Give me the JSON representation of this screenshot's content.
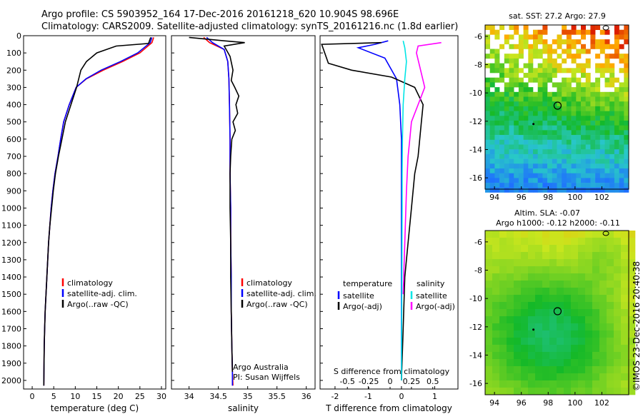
{
  "title_line1": "Argo profile: CS 5903952_164 17-Dec-2016 20161218_620 10.904S 98.696E",
  "title_line2": "Climatology: CARS2009. Satellite-adjusted climatology: synTS_20161216.nc (1.8d earlier)",
  "stamp": "©IMOS 23-Dec-2016 20:40:38",
  "colors": {
    "clim": "#ff0000",
    "sat": "#0000ff",
    "argo": "#000000",
    "cyan": "#00e5e5",
    "magenta": "#ff00ff"
  },
  "chart_data": [
    {
      "type": "line",
      "xlabel": "temperature (deg C)",
      "ylabel": "",
      "xlim": [
        -2,
        31
      ],
      "ylim": [
        2050,
        0
      ],
      "xticks": [
        0,
        5,
        10,
        15,
        20,
        25,
        30
      ],
      "yticks": [
        0,
        100,
        200,
        300,
        400,
        500,
        600,
        700,
        800,
        900,
        1000,
        1100,
        1200,
        1300,
        1400,
        1500,
        1600,
        1700,
        1800,
        1900,
        2000
      ],
      "legend": [
        "climatology",
        "satellite-adj. clim.",
        "Argo(..raw -QC)"
      ],
      "series": [
        {
          "name": "climatology",
          "color": "#ff0000",
          "x": [
            28.2,
            27.8,
            25,
            21,
            16.5,
            12.6,
            10.2,
            8.6,
            7.3,
            6.6,
            6.0,
            5.3,
            4.8,
            4.4,
            4.1,
            3.8,
            3.6,
            3.4,
            3.2,
            3.0,
            2.9,
            2.8,
            2.7
          ],
          "y": [
            10,
            40,
            100,
            150,
            200,
            250,
            300,
            400,
            500,
            600,
            700,
            800,
            900,
            1000,
            1100,
            1200,
            1300,
            1400,
            1500,
            1600,
            1700,
            1800,
            2030
          ]
        },
        {
          "name": "satellite-adj. clim.",
          "color": "#0000ff",
          "x": [
            27.8,
            27.4,
            24.5,
            20.5,
            16,
            12.5,
            10.2,
            8.6,
            7.3,
            6.6,
            6.0,
            5.3,
            4.8,
            4.4,
            4.1,
            3.8,
            3.6,
            3.4,
            3.2,
            3.0,
            2.9,
            2.8,
            2.7
          ],
          "y": [
            10,
            40,
            100,
            150,
            200,
            250,
            300,
            400,
            500,
            600,
            700,
            800,
            900,
            1000,
            1100,
            1200,
            1300,
            1400,
            1500,
            1600,
            1700,
            1800,
            2030
          ]
        },
        {
          "name": "Argo(..raw -QC)",
          "color": "#000000",
          "x": [
            27.5,
            27.0,
            19.5,
            15,
            12.6,
            11.3,
            10.3,
            9.0,
            7.7,
            6.9,
            6.1,
            5.4,
            4.9,
            4.5,
            4.1,
            3.8,
            3.6,
            3.4,
            3.2,
            3.0,
            2.9,
            2.8,
            2.7
          ],
          "y": [
            10,
            45,
            60,
            100,
            150,
            200,
            300,
            400,
            500,
            600,
            700,
            800,
            900,
            1000,
            1100,
            1200,
            1300,
            1400,
            1500,
            1600,
            1700,
            1800,
            2030
          ]
        }
      ]
    },
    {
      "type": "line",
      "xlabel": "salinity",
      "xlim": [
        33.7,
        36.15
      ],
      "ylim": [
        2050,
        0
      ],
      "xticks": [
        34,
        34.5,
        35,
        35.5,
        36
      ],
      "legend": [
        "climatology",
        "satellite-adj. clim.",
        "Argo(..raw -QC)"
      ],
      "annotations": [
        "Argo Australia",
        "PI: Susan Wijffels"
      ],
      "series": [
        {
          "name": "climatology",
          "color": "#ff0000",
          "x": [
            34.25,
            34.35,
            34.6,
            34.66,
            34.68,
            34.69,
            34.7,
            34.7,
            34.71,
            34.71,
            34.72,
            34.72,
            34.73,
            34.74,
            34.75
          ],
          "y": [
            10,
            40,
            80,
            150,
            250,
            400,
            600,
            800,
            1000,
            1200,
            1400,
            1600,
            1800,
            1950,
            2030
          ]
        },
        {
          "name": "satellite-adj. clim.",
          "color": "#0000ff",
          "x": [
            34.3,
            34.4,
            34.6,
            34.66,
            34.68,
            34.69,
            34.7,
            34.7,
            34.71,
            34.71,
            34.72,
            34.72,
            34.73,
            34.74,
            34.74
          ],
          "y": [
            10,
            40,
            80,
            150,
            250,
            400,
            600,
            800,
            1000,
            1200,
            1400,
            1600,
            1800,
            1950,
            2030
          ]
        },
        {
          "name": "Argo(..raw -QC)",
          "color": "#000000",
          "x": [
            34.0,
            34.6,
            34.95,
            34.6,
            34.7,
            34.75,
            34.72,
            34.78,
            34.85,
            34.8,
            34.83,
            34.75,
            34.79,
            34.73,
            34.71,
            34.7,
            34.7,
            34.71,
            34.71,
            34.72,
            34.73,
            34.74
          ],
          "y": [
            10,
            30,
            40,
            60,
            120,
            200,
            260,
            300,
            350,
            400,
            450,
            500,
            550,
            600,
            700,
            800,
            1000,
            1200,
            1400,
            1600,
            1800,
            1950
          ]
        }
      ]
    },
    {
      "type": "line",
      "xlabel": "T difference from climatology",
      "xlabel2": "S difference from climatology",
      "xlim": [
        -2.45,
        1.7
      ],
      "ylim": [
        2050,
        0
      ],
      "xticks": [
        -2,
        -1,
        0,
        1
      ],
      "xticks2": [
        -0.5,
        -0.25,
        0,
        0.25,
        0.5
      ],
      "legend_titles": [
        "temperature",
        "salinity"
      ],
      "legend": [
        "satellite",
        "Argo(-adj)",
        "satellite",
        "Argo(-adj)"
      ],
      "series": [
        {
          "name": "satellite",
          "color": "#0000ff",
          "x": [
            -0.4,
            -0.8,
            -1.3,
            -0.5,
            -0.15,
            -0.05,
            0.0,
            0.0,
            0.0,
            0.0,
            0.0,
            0.0
          ],
          "y": [
            30,
            50,
            70,
            130,
            250,
            400,
            600,
            800,
            1000,
            1400,
            1800,
            2000
          ]
        },
        {
          "name": "Argo(-adj)",
          "color": "#000000",
          "x": [
            -0.6,
            -2.4,
            -2.2,
            -1.5,
            -0.3,
            0.4,
            0.65,
            0.6,
            0.55,
            0.5,
            0.4,
            0.3,
            0.2,
            0.1,
            0.05,
            0.0
          ],
          "y": [
            40,
            50,
            160,
            200,
            240,
            300,
            400,
            500,
            600,
            700,
            800,
            1000,
            1200,
            1400,
            1700,
            2000
          ]
        },
        {
          "name": "satellite",
          "color": "#00e5e5",
          "x": [
            0.05,
            0.1,
            0.15,
            0.1,
            0.05,
            0.03,
            0.02,
            0.02,
            0.01,
            0.0
          ],
          "y": [
            30,
            70,
            150,
            250,
            400,
            600,
            800,
            1000,
            1500,
            2000
          ]
        },
        {
          "name": "Argo(-adj)",
          "color": "#ff00ff",
          "x": [
            1.2,
            0.5,
            0.45,
            0.7,
            0.5,
            0.3,
            0.25,
            0.2,
            0.15,
            0.1,
            0.05
          ],
          "y": [
            40,
            60,
            100,
            300,
            400,
            500,
            600,
            700,
            900,
            1200,
            1500
          ]
        }
      ]
    },
    {
      "type": "heatmap",
      "title": "sat. SST: 27.2  Argo: 27.9",
      "xlim": [
        93.3,
        104
      ],
      "ylim": [
        -16.8,
        -5.2
      ],
      "xticks": [
        94,
        96,
        98,
        100,
        102
      ],
      "yticks": [
        -6,
        -8,
        -10,
        -12,
        -14,
        -16
      ],
      "marker": {
        "lon": 98.7,
        "lat": -10.9
      }
    },
    {
      "type": "heatmap",
      "title": "Altim. SLA: -0.07",
      "subtitle": "Argo h1000: -0.12  h2000: -0.11",
      "xlim": [
        93.3,
        104
      ],
      "ylim": [
        -16.8,
        -5.2
      ],
      "xticks": [
        94,
        96,
        98,
        100,
        102
      ],
      "yticks": [
        -6,
        -8,
        -10,
        -12,
        -14,
        -16
      ],
      "marker": {
        "lon": 98.7,
        "lat": -10.9
      }
    }
  ]
}
